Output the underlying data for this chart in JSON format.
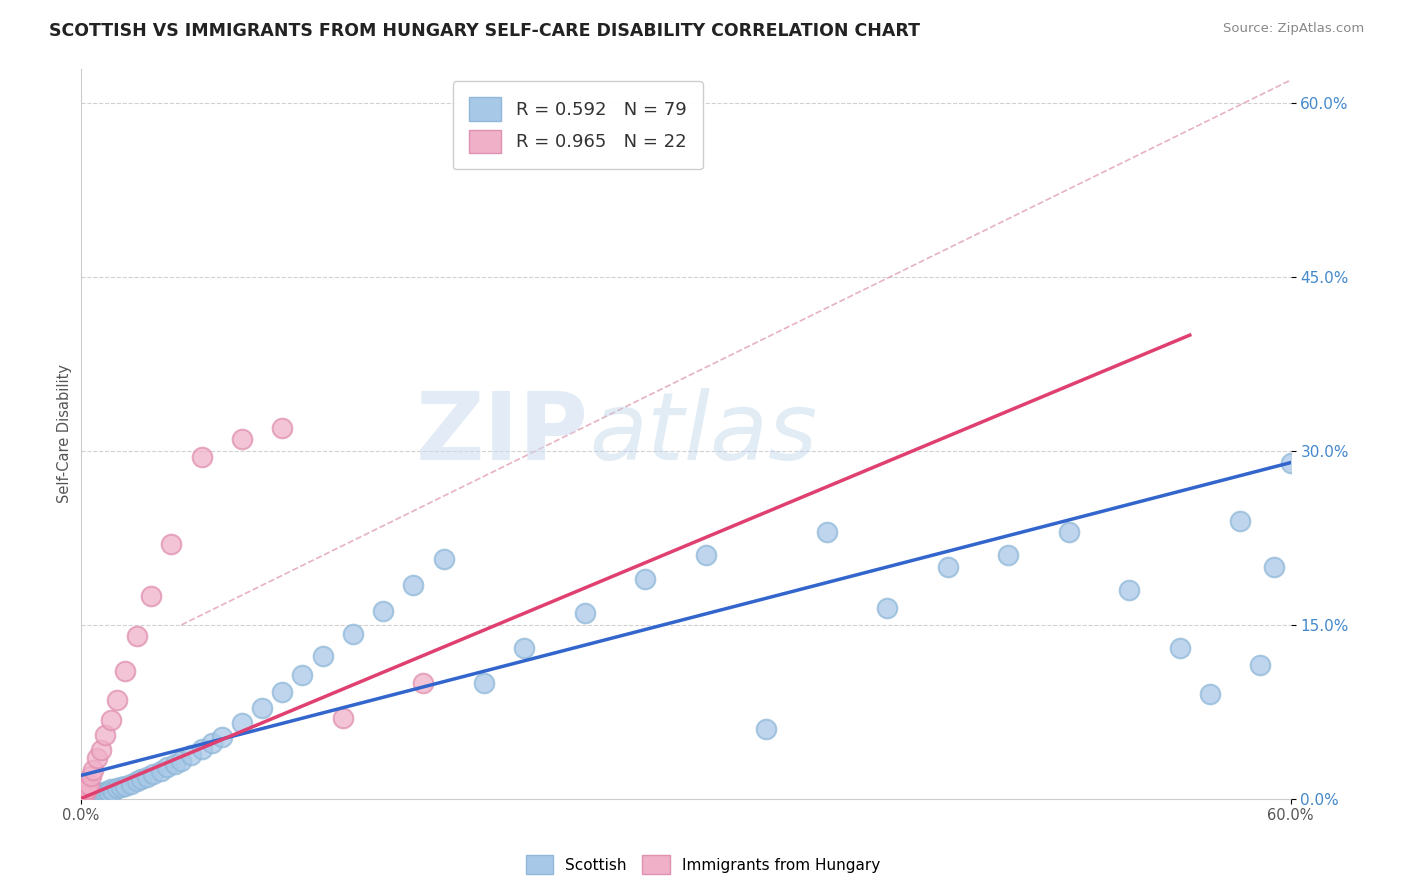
{
  "title": "SCOTTISH VS IMMIGRANTS FROM HUNGARY SELF-CARE DISABILITY CORRELATION CHART",
  "source": "Source: ZipAtlas.com",
  "ylabel": "Self-Care Disability",
  "xlim": [
    0.0,
    0.6
  ],
  "ylim": [
    0.0,
    0.63
  ],
  "scottish_color": "#a8c8e8",
  "scottish_edge_color": "#90b8d8",
  "hungary_color": "#f0b0c8",
  "hungary_edge_color": "#e090b0",
  "scottish_line_color": "#3366cc",
  "hungary_line_color": "#e04070",
  "dashed_line_color": "#e0a0b0",
  "grid_color": "#cccccc",
  "background_color": "#ffffff",
  "watermark_color": "#ccddf0",
  "right_tick_color": "#4488cc",
  "scottish_x": [
    0.001,
    0.001,
    0.001,
    0.001,
    0.001,
    0.002,
    0.002,
    0.002,
    0.002,
    0.002,
    0.002,
    0.003,
    0.003,
    0.003,
    0.003,
    0.004,
    0.004,
    0.004,
    0.005,
    0.005,
    0.005,
    0.006,
    0.006,
    0.007,
    0.007,
    0.008,
    0.008,
    0.009,
    0.009,
    0.01,
    0.011,
    0.012,
    0.013,
    0.014,
    0.015,
    0.016,
    0.018,
    0.02,
    0.022,
    0.025,
    0.028,
    0.03,
    0.033,
    0.036,
    0.04,
    0.043,
    0.047,
    0.05,
    0.055,
    0.06,
    0.065,
    0.07,
    0.08,
    0.09,
    0.1,
    0.11,
    0.12,
    0.135,
    0.15,
    0.165,
    0.18,
    0.2,
    0.22,
    0.25,
    0.28,
    0.31,
    0.34,
    0.37,
    0.4,
    0.43,
    0.46,
    0.49,
    0.52,
    0.545,
    0.56,
    0.575,
    0.585,
    0.592,
    0.6
  ],
  "scottish_y": [
    0.001,
    0.002,
    0.003,
    0.001,
    0.002,
    0.001,
    0.002,
    0.003,
    0.001,
    0.002,
    0.003,
    0.002,
    0.003,
    0.001,
    0.002,
    0.002,
    0.003,
    0.002,
    0.003,
    0.002,
    0.004,
    0.003,
    0.002,
    0.004,
    0.003,
    0.004,
    0.003,
    0.005,
    0.004,
    0.005,
    0.005,
    0.006,
    0.007,
    0.006,
    0.008,
    0.007,
    0.009,
    0.01,
    0.011,
    0.013,
    0.015,
    0.017,
    0.019,
    0.021,
    0.024,
    0.027,
    0.03,
    0.033,
    0.038,
    0.043,
    0.048,
    0.053,
    0.065,
    0.078,
    0.092,
    0.107,
    0.123,
    0.142,
    0.162,
    0.184,
    0.207,
    0.1,
    0.13,
    0.16,
    0.19,
    0.21,
    0.06,
    0.23,
    0.165,
    0.2,
    0.21,
    0.23,
    0.18,
    0.13,
    0.09,
    0.24,
    0.115,
    0.2,
    0.29
  ],
  "hungary_x": [
    0.001,
    0.002,
    0.002,
    0.003,
    0.003,
    0.004,
    0.005,
    0.006,
    0.008,
    0.01,
    0.012,
    0.015,
    0.018,
    0.022,
    0.028,
    0.035,
    0.045,
    0.06,
    0.08,
    0.1,
    0.13,
    0.17
  ],
  "hungary_y": [
    0.003,
    0.005,
    0.009,
    0.01,
    0.008,
    0.012,
    0.02,
    0.025,
    0.035,
    0.042,
    0.055,
    0.068,
    0.085,
    0.11,
    0.14,
    0.175,
    0.22,
    0.295,
    0.31,
    0.32,
    0.07,
    0.1
  ],
  "scottish_line_x": [
    0.0,
    0.6
  ],
  "scottish_line_y": [
    0.02,
    0.29
  ],
  "hungary_line_x": [
    0.0,
    0.55
  ],
  "hungary_line_y": [
    0.0,
    0.4
  ],
  "diag_line_x": [
    0.05,
    0.6
  ],
  "diag_line_y": [
    0.15,
    0.62
  ]
}
